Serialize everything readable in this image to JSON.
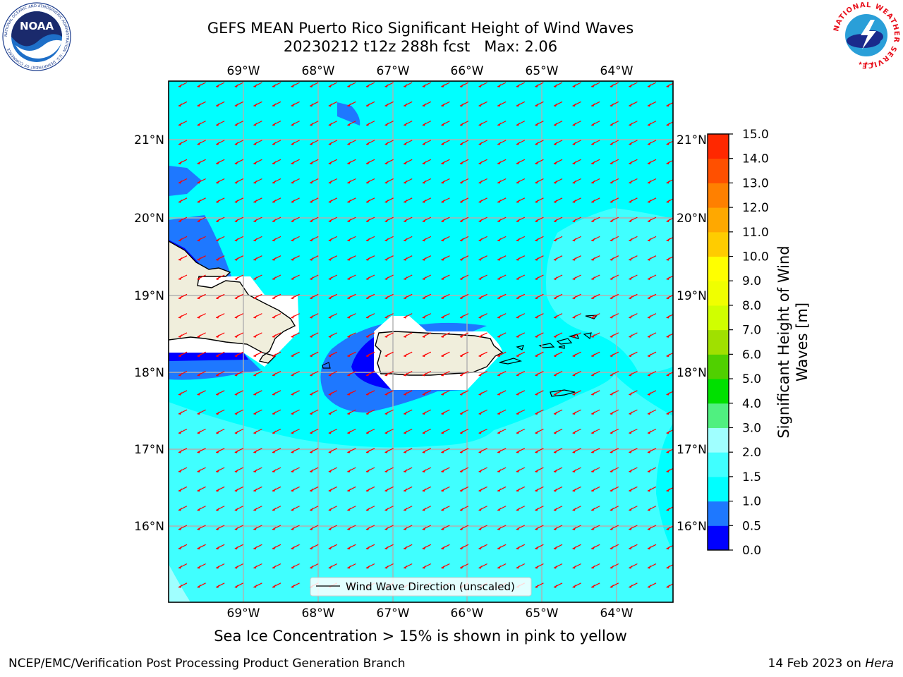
{
  "header": {
    "title_line1": "GEFS MEAN Puerto Rico Significant Height of Wind Waves",
    "title_line2": "20230212 t12z 288h fcst   Max: 2.06"
  },
  "map": {
    "lon_labels": [
      "69°W",
      "68°W",
      "67°W",
      "66°W",
      "65°W",
      "64°W"
    ],
    "lat_labels": [
      "21°N",
      "20°N",
      "19°N",
      "18°N",
      "17°N",
      "16°N"
    ],
    "legend_label": "Wind Wave Direction (unscaled)",
    "arrow_color": "#ff0000",
    "land_color": "#f0eedc"
  },
  "colorbar": {
    "label": "Significant Height of Wind Waves [m]",
    "ticks": [
      "0.0",
      "0.5",
      "1.0",
      "1.5",
      "2.0",
      "3.0",
      "4.0",
      "5.0",
      "6.0",
      "7.0",
      "8.0",
      "9.0",
      "10.0",
      "11.0",
      "12.0",
      "13.0",
      "14.0",
      "15.0"
    ],
    "colors": [
      "#0000ff",
      "#1e78ff",
      "#00ffff",
      "#40ffff",
      "#a0ffff",
      "#50f080",
      "#00e000",
      "#50d000",
      "#a0e000",
      "#d0ff00",
      "#f0ff00",
      "#ffff00",
      "#ffcc00",
      "#ffa800",
      "#ff8000",
      "#ff5000",
      "#ff2800",
      "#ff0000"
    ]
  },
  "footer": {
    "note": "Sea Ice Concentration > 15% is shown in pink to yellow",
    "credit": "NCEP/EMC/Verification Post Processing Product Generation Branch",
    "date": "14 Feb 2023 on ",
    "host": "Hera"
  },
  "logos": {
    "noaa_text": "NOAA",
    "noaa_ring": "NATIONAL OCEANIC AND ATMOSPHERIC ADMINISTRATION · U.S. DEPARTMENT OF COMMERCE",
    "nws_ring": "NATIONAL WEATHER SERVICE"
  }
}
